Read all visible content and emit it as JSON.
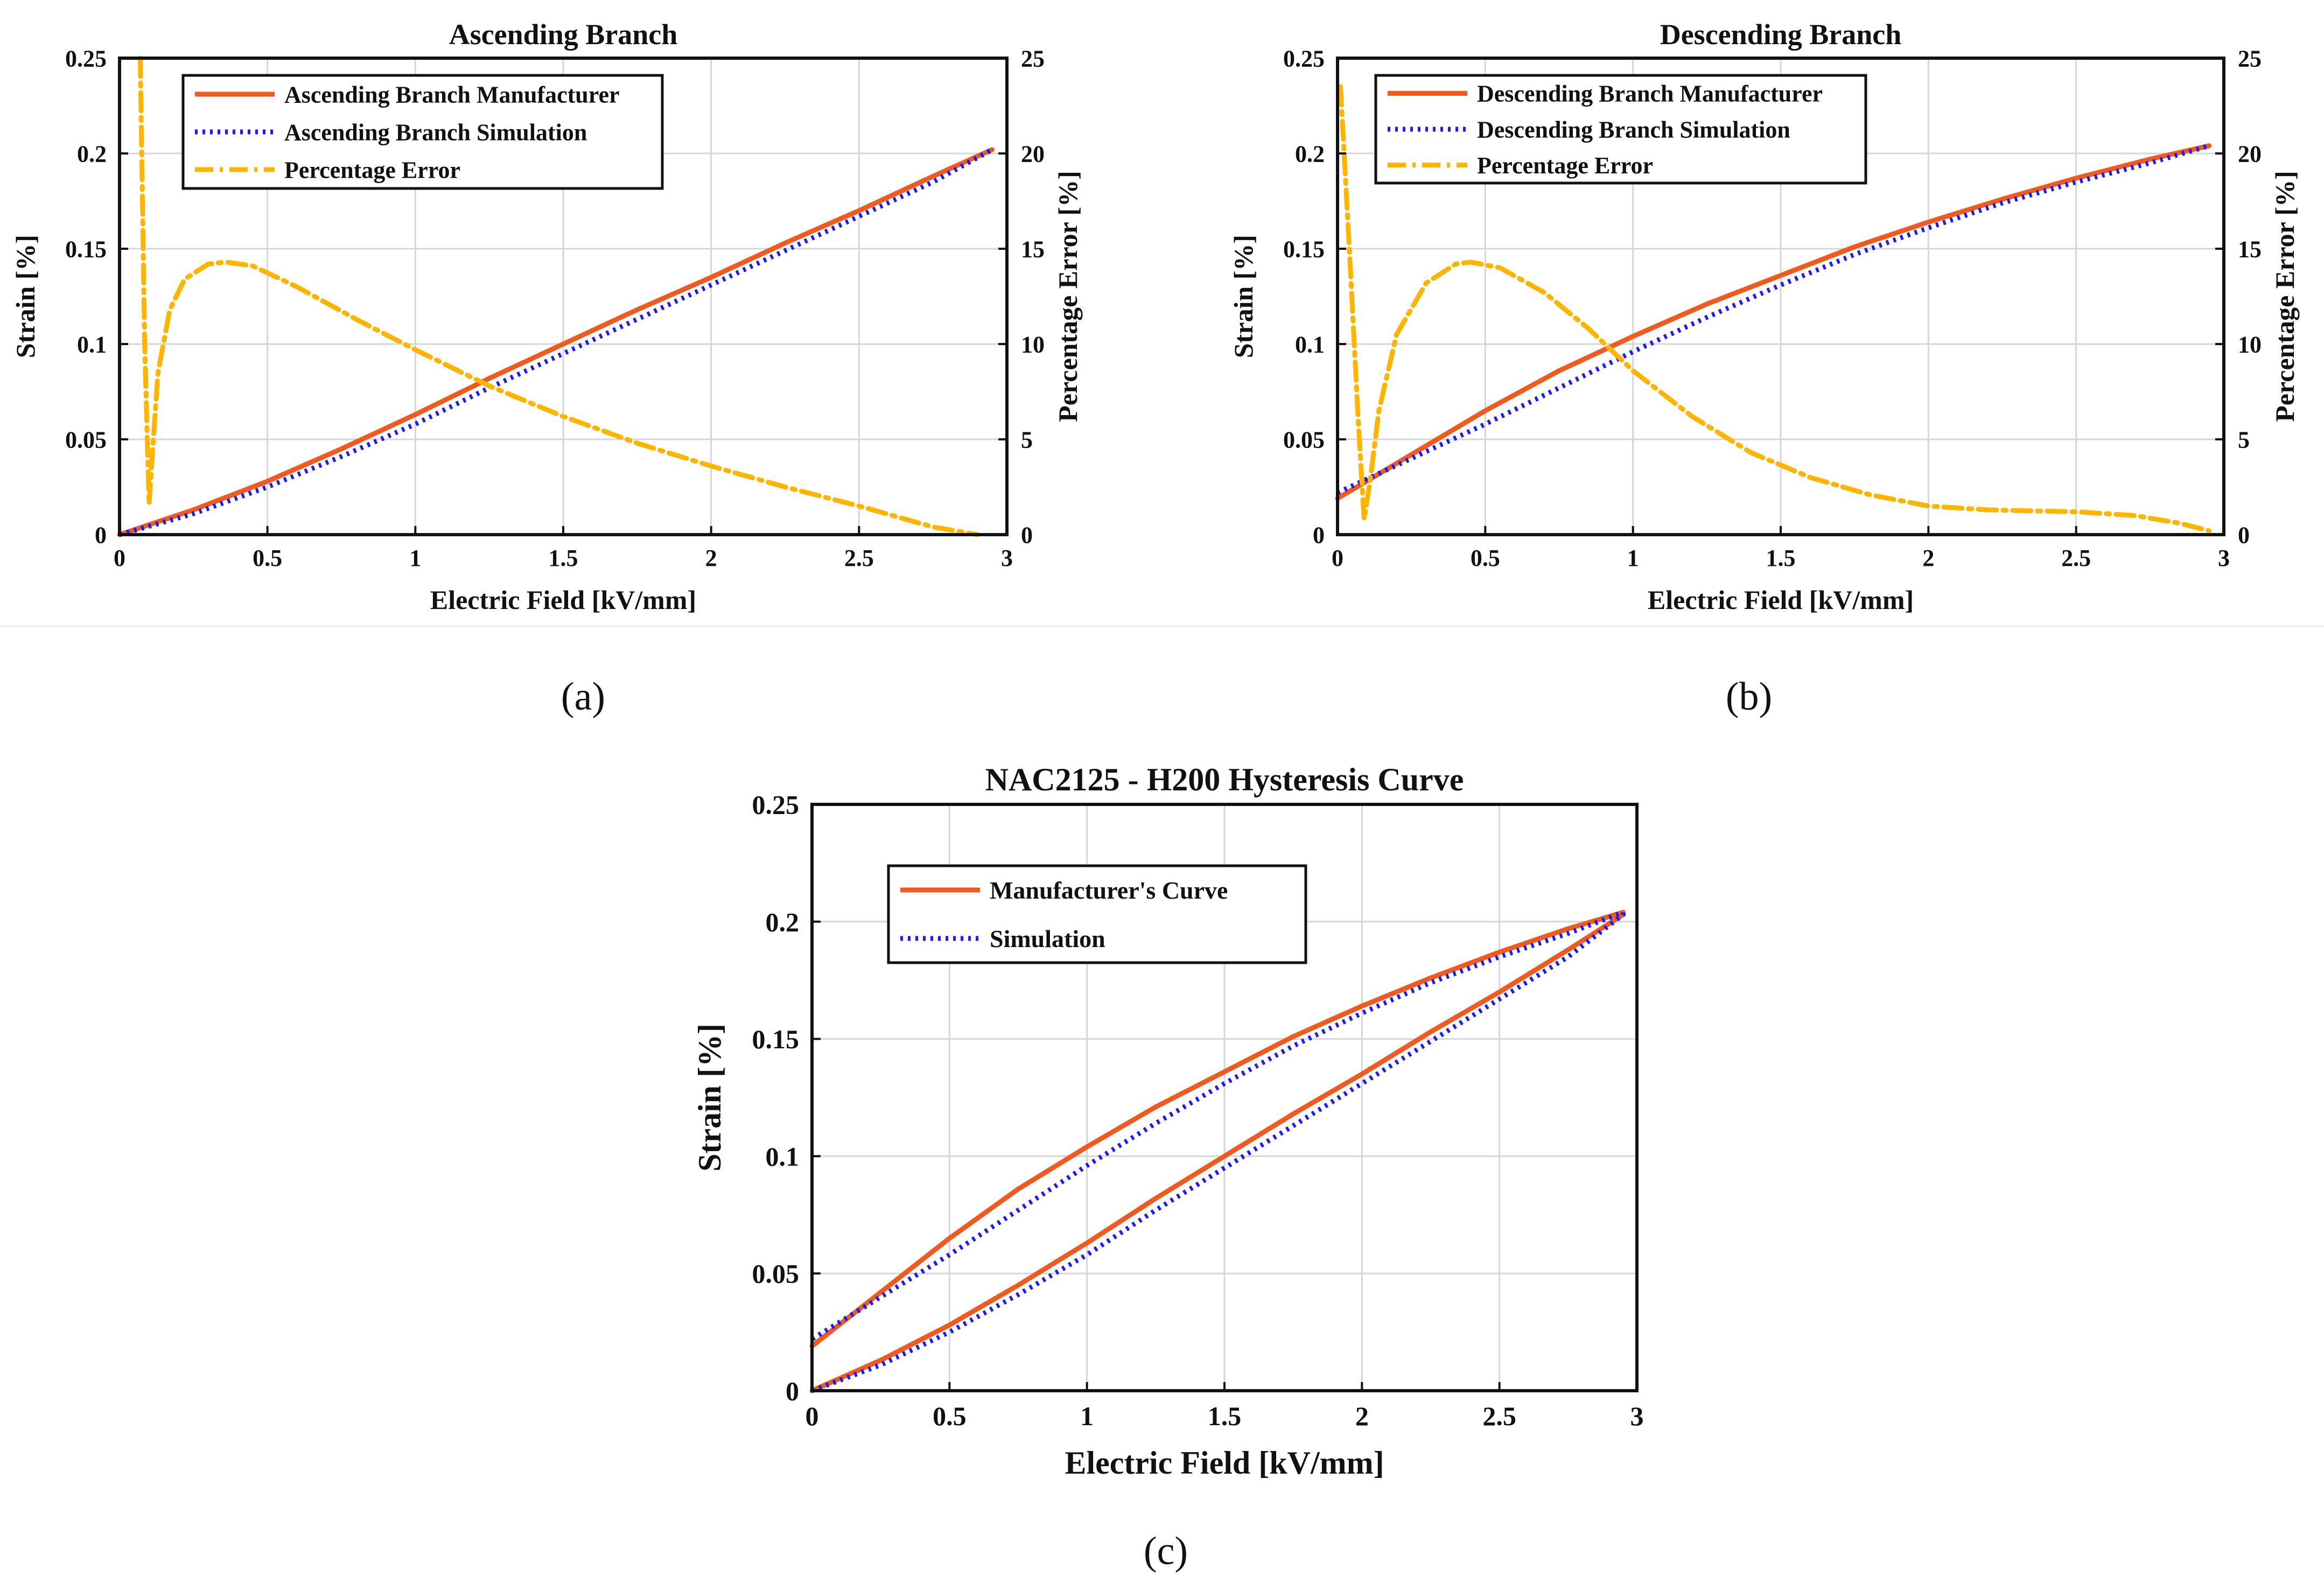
{
  "figure": {
    "panel_labels": [
      "(a)",
      "(b)",
      "(c)"
    ]
  },
  "colors": {
    "manufacturer": "#f05a1e",
    "simulation": "#1a1aff",
    "error": "#ffb400",
    "grid": "#d6d6d6",
    "axis": "#111111"
  },
  "chart_data": [
    {
      "id": "a",
      "type": "line",
      "title": "Ascending Branch",
      "xlabel": "Electric Field [kV/mm]",
      "ylabel": "Strain [%]",
      "y2label": "Percentage Error [%]",
      "xlim": [
        0,
        3
      ],
      "ylim": [
        0,
        0.25
      ],
      "y2lim": [
        0,
        25
      ],
      "xticks": [
        "0",
        "0.5",
        "1",
        "1.5",
        "2",
        "2.5",
        "3"
      ],
      "yticks": [
        "0",
        "0.05",
        "0.1",
        "0.15",
        "0.2",
        "0.25"
      ],
      "y2ticks": [
        "0",
        "5",
        "10",
        "15",
        "20",
        "25"
      ],
      "legend_position": "top-left",
      "series": [
        {
          "name": "Ascending Branch Manufacturer",
          "style": "solid",
          "axis": "left",
          "x": [
            0,
            0.25,
            0.5,
            0.75,
            1.0,
            1.25,
            1.5,
            1.75,
            2.0,
            2.25,
            2.5,
            2.75,
            2.95
          ],
          "y": [
            0,
            0.013,
            0.028,
            0.045,
            0.063,
            0.082,
            0.1,
            0.118,
            0.135,
            0.153,
            0.17,
            0.188,
            0.202
          ]
        },
        {
          "name": "Ascending Branch Simulation",
          "style": "dotted",
          "axis": "left",
          "x": [
            0,
            0.25,
            0.5,
            0.75,
            1.0,
            1.25,
            1.5,
            1.75,
            2.0,
            2.25,
            2.5,
            2.75,
            2.95
          ],
          "y": [
            0,
            0.011,
            0.025,
            0.041,
            0.058,
            0.077,
            0.095,
            0.113,
            0.131,
            0.149,
            0.167,
            0.185,
            0.202
          ]
        },
        {
          "name": "Percentage Error",
          "style": "dashdot",
          "axis": "right",
          "x": [
            0.07,
            0.085,
            0.1,
            0.11,
            0.13,
            0.17,
            0.22,
            0.3,
            0.36,
            0.45,
            0.6,
            0.8,
            1.0,
            1.25,
            1.5,
            1.75,
            2.0,
            2.25,
            2.5,
            2.75,
            2.9
          ],
          "y": [
            25,
            10,
            1.6,
            4,
            8.5,
            11.8,
            13.4,
            14.2,
            14.3,
            14.1,
            13.0,
            11.3,
            9.7,
            7.8,
            6.2,
            4.8,
            3.6,
            2.5,
            1.5,
            0.4,
            0
          ]
        }
      ]
    },
    {
      "id": "b",
      "type": "line",
      "title": "Descending Branch",
      "xlabel": "Electric Field [kV/mm]",
      "ylabel": "Strain [%]",
      "y2label": "Percentage Error [%]",
      "xlim": [
        0,
        3
      ],
      "ylim": [
        0,
        0.25
      ],
      "y2lim": [
        0,
        25
      ],
      "xticks": [
        "0",
        "0.5",
        "1",
        "1.5",
        "2",
        "2.5",
        "3"
      ],
      "yticks": [
        "0",
        "0.05",
        "0.1",
        "0.15",
        "0.2",
        "0.25"
      ],
      "y2ticks": [
        "0",
        "5",
        "10",
        "15",
        "20",
        "25"
      ],
      "legend_position": "top-left",
      "series": [
        {
          "name": "Descending Branch Manufacturer",
          "style": "solid",
          "axis": "left",
          "x": [
            0,
            0.25,
            0.5,
            0.75,
            1.0,
            1.25,
            1.5,
            1.75,
            2.0,
            2.25,
            2.5,
            2.75,
            2.95
          ],
          "y": [
            0.019,
            0.042,
            0.065,
            0.086,
            0.104,
            0.121,
            0.136,
            0.151,
            0.164,
            0.176,
            0.187,
            0.197,
            0.204
          ]
        },
        {
          "name": "Descending Branch Simulation",
          "style": "dotted",
          "axis": "left",
          "x": [
            0,
            0.25,
            0.5,
            0.75,
            1.0,
            1.25,
            1.5,
            1.75,
            2.0,
            2.25,
            2.5,
            2.75,
            2.95
          ],
          "y": [
            0.022,
            0.04,
            0.058,
            0.077,
            0.096,
            0.114,
            0.131,
            0.147,
            0.161,
            0.174,
            0.185,
            0.195,
            0.204
          ]
        },
        {
          "name": "Percentage Error",
          "style": "dashdot",
          "axis": "right",
          "x": [
            0.01,
            0.04,
            0.07,
            0.09,
            0.11,
            0.14,
            0.2,
            0.3,
            0.4,
            0.45,
            0.55,
            0.7,
            0.85,
            1.0,
            1.2,
            1.4,
            1.6,
            1.8,
            2.0,
            2.2,
            2.5,
            2.7,
            2.85,
            2.95
          ],
          "y": [
            23.5,
            15,
            6,
            0.8,
            2.8,
            6.5,
            10.5,
            13.2,
            14.2,
            14.3,
            14.0,
            12.7,
            10.8,
            8.6,
            6.2,
            4.3,
            3.0,
            2.1,
            1.5,
            1.3,
            1.2,
            1.0,
            0.6,
            0.2
          ]
        }
      ]
    },
    {
      "id": "c",
      "type": "line",
      "title": "NAC2125 - H200 Hysteresis Curve",
      "xlabel": "Electric Field [kV/mm]",
      "ylabel": "Strain [%]",
      "xlim": [
        0,
        3
      ],
      "ylim": [
        0,
        0.25
      ],
      "xticks": [
        "0",
        "0.5",
        "1",
        "1.5",
        "2",
        "2.5",
        "3"
      ],
      "yticks": [
        "0",
        "0.05",
        "0.1",
        "0.15",
        "0.2",
        "0.25"
      ],
      "legend_position": "top-left",
      "series": [
        {
          "name": "Manufacturer's Curve",
          "style": "solid",
          "x": [
            0,
            0.25,
            0.5,
            0.75,
            1.0,
            1.25,
            1.5,
            1.75,
            2.0,
            2.25,
            2.5,
            2.75,
            2.95,
            2.95,
            2.75,
            2.5,
            2.25,
            2.0,
            1.75,
            1.5,
            1.25,
            1.0,
            0.75,
            0.5,
            0.25,
            0
          ],
          "y": [
            0,
            0.013,
            0.028,
            0.045,
            0.063,
            0.082,
            0.1,
            0.118,
            0.135,
            0.153,
            0.17,
            0.188,
            0.203,
            0.204,
            0.197,
            0.187,
            0.176,
            0.164,
            0.151,
            0.136,
            0.121,
            0.104,
            0.086,
            0.065,
            0.042,
            0.019
          ]
        },
        {
          "name": "Simulation",
          "style": "dotted",
          "x": [
            0,
            0.25,
            0.5,
            0.75,
            1.0,
            1.25,
            1.5,
            1.75,
            2.0,
            2.25,
            2.5,
            2.75,
            2.95,
            2.95,
            2.75,
            2.5,
            2.25,
            2.0,
            1.75,
            1.5,
            1.25,
            1.0,
            0.75,
            0.5,
            0.25,
            0
          ],
          "y": [
            0,
            0.011,
            0.025,
            0.041,
            0.058,
            0.077,
            0.095,
            0.113,
            0.131,
            0.149,
            0.167,
            0.185,
            0.203,
            0.204,
            0.195,
            0.185,
            0.174,
            0.161,
            0.147,
            0.131,
            0.114,
            0.096,
            0.077,
            0.058,
            0.04,
            0.022
          ]
        }
      ]
    }
  ]
}
